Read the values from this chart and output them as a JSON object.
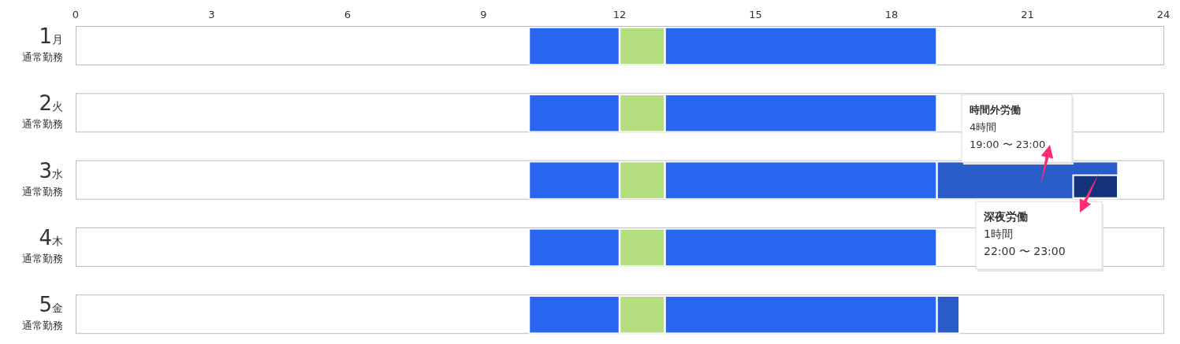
{
  "chart_data": {
    "type": "bar",
    "orientation": "horizontal",
    "categories": [
      "1月通常勤務",
      "2火通常勤務",
      "3水通常勤務",
      "4木通常勤務",
      "5金通常勤務"
    ],
    "xlim": [
      0,
      24
    ],
    "xticks": [
      0,
      3,
      6,
      9,
      12,
      15,
      18,
      21,
      24
    ],
    "series": [
      {
        "color": "#2966f0",
        "base": [
          10,
          10,
          10,
          10,
          10
        ],
        "values": [
          2,
          2,
          2,
          2,
          2
        ]
      },
      {
        "color": "#b5de7f",
        "base": [
          12,
          12,
          12,
          12,
          12
        ],
        "values": [
          1,
          1,
          1,
          1,
          1
        ]
      },
      {
        "color": "#2966f0",
        "base": [
          13,
          13,
          13,
          13,
          13
        ],
        "values": [
          6,
          6,
          6,
          6,
          6
        ]
      },
      {
        "color": "#295cc8",
        "base": [
          null,
          null,
          19,
          null,
          19
        ],
        "values": [
          null,
          null,
          4,
          null,
          0.5
        ]
      },
      {
        "color": "#15337a",
        "base": [
          null,
          null,
          22,
          null,
          null
        ],
        "values": [
          null,
          null,
          1,
          null,
          null
        ]
      }
    ],
    "annotations": [
      "**時間外労働**\n4時間\n19:00 〜 23:00",
      "**深夜労働**\n1時間\n22:00 〜 23:00"
    ]
  }
}
